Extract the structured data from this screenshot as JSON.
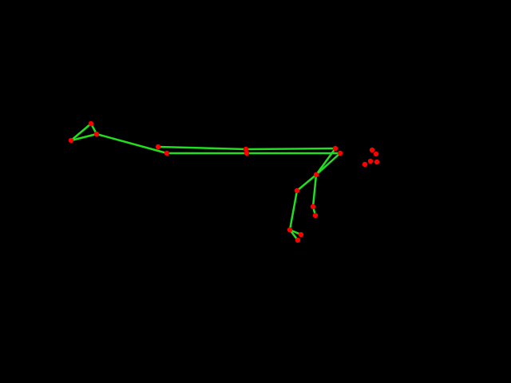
{
  "scene": {
    "background_color": "#000000",
    "bone_color": "#22dd22",
    "joint_color": "#ff0000",
    "description_visible_text": ""
  }
}
